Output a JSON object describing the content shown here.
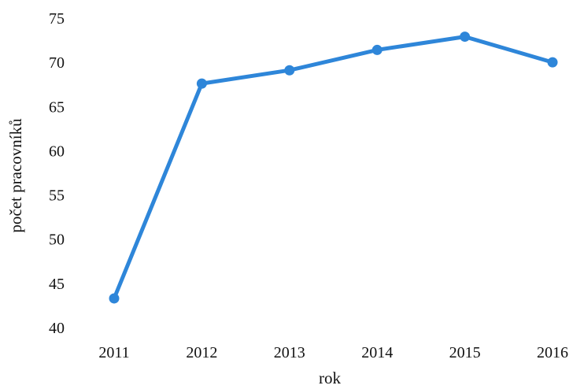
{
  "chart_data": {
    "type": "line",
    "title": "",
    "xlabel": "rok",
    "ylabel": "počet pracovníků",
    "x": [
      "2011",
      "2012",
      "2013",
      "2014",
      "2015",
      "2016"
    ],
    "series": [
      {
        "values": [
          43.3,
          67.6,
          69.1,
          71.4,
          72.9,
          70.0
        ]
      }
    ],
    "yticks": [
      40,
      45,
      50,
      55,
      60,
      65,
      70,
      75
    ],
    "ylim": [
      40,
      75
    ],
    "grid": false,
    "legend": "none",
    "colors": {
      "line": "#2e86d9",
      "text": "#111111"
    }
  }
}
